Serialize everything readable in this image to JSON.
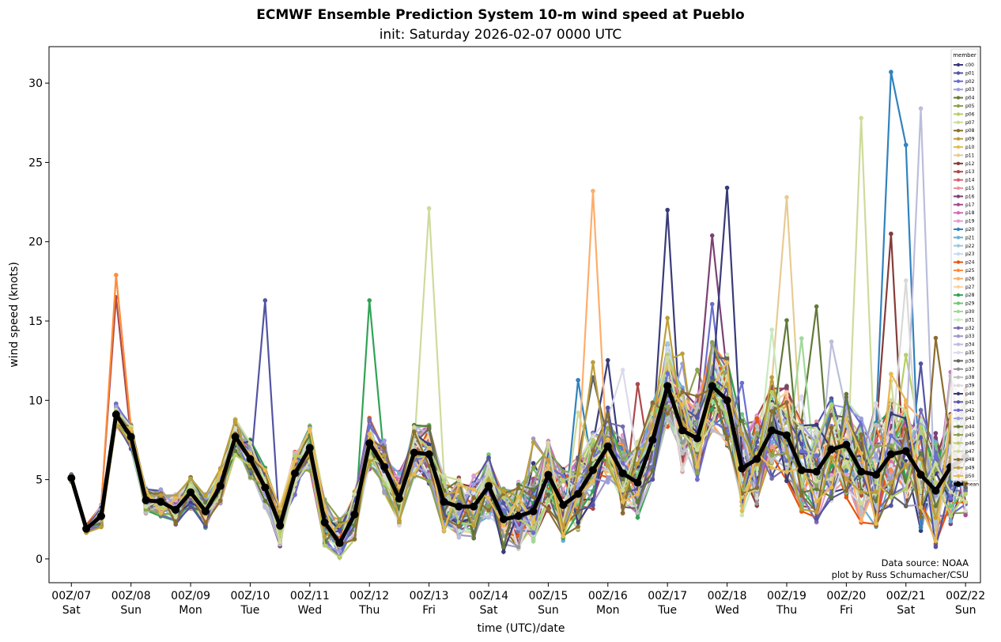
{
  "chart_data": {
    "type": "line",
    "title": "ECMWF Ensemble Prediction System 10-m wind speed at Pueblo",
    "subtitle": "init: Saturday 2026-02-07 0000 UTC",
    "xlabel": "time (UTC)/date",
    "ylabel": "wind speed (knots)",
    "x_unit": "forecast hour",
    "x_step_hours": 6,
    "xlim_hours": [
      -9,
      366
    ],
    "ylim": [
      -1.5,
      32.3
    ],
    "yticks": [
      0,
      5,
      10,
      15,
      20,
      25,
      30
    ],
    "xticks": [
      {
        "hour": 0,
        "line1": "00Z/07",
        "line2": "Sat"
      },
      {
        "hour": 24,
        "line1": "00Z/08",
        "line2": "Sun"
      },
      {
        "hour": 48,
        "line1": "00Z/09",
        "line2": "Mon"
      },
      {
        "hour": 72,
        "line1": "00Z/10",
        "line2": "Tue"
      },
      {
        "hour": 96,
        "line1": "00Z/11",
        "line2": "Wed"
      },
      {
        "hour": 120,
        "line1": "00Z/12",
        "line2": "Thu"
      },
      {
        "hour": 144,
        "line1": "00Z/13",
        "line2": "Fri"
      },
      {
        "hour": 168,
        "line1": "00Z/14",
        "line2": "Sat"
      },
      {
        "hour": 192,
        "line1": "00Z/15",
        "line2": "Sun"
      },
      {
        "hour": 216,
        "line1": "00Z/16",
        "line2": "Mon"
      },
      {
        "hour": 240,
        "line1": "00Z/17",
        "line2": "Tue"
      },
      {
        "hour": 264,
        "line1": "00Z/18",
        "line2": "Wed"
      },
      {
        "hour": 288,
        "line1": "00Z/19",
        "line2": "Thu"
      },
      {
        "hour": 312,
        "line1": "00Z/20",
        "line2": "Fri"
      },
      {
        "hour": 336,
        "line1": "00Z/21",
        "line2": "Sat"
      },
      {
        "hour": 360,
        "line1": "00Z/22",
        "line2": "Sun"
      }
    ],
    "grid": false,
    "legend": {
      "title": "member",
      "placement": "upper-right"
    },
    "mean": {
      "name": "mean",
      "color": "#000000",
      "values": [
        5.1,
        1.9,
        2.7,
        9.1,
        7.7,
        3.7,
        3.6,
        3.1,
        4.2,
        3.0,
        4.6,
        7.7,
        6.3,
        4.5,
        2.1,
        5.4,
        7.0,
        2.3,
        1.0,
        2.8,
        7.3,
        5.8,
        3.8,
        6.7,
        6.6,
        3.6,
        3.3,
        3.3,
        4.6,
        2.5,
        2.7,
        3.0,
        5.3,
        3.4,
        4.1,
        5.6,
        7.1,
        5.4,
        4.8,
        7.5,
        10.9,
        8.1,
        7.6,
        10.9,
        10.0,
        5.7,
        6.3,
        8.1,
        7.8,
        5.6,
        5.5,
        6.9,
        7.2,
        5.5,
        5.3,
        6.6,
        6.8,
        5.3,
        4.3,
        5.8,
        6.4
      ]
    },
    "members": [
      {
        "name": "c00",
        "color": "#393b79"
      },
      {
        "name": "p01",
        "color": "#5254a3"
      },
      {
        "name": "p02",
        "color": "#6b6ecf"
      },
      {
        "name": "p03",
        "color": "#9c9ede"
      },
      {
        "name": "p04",
        "color": "#637939"
      },
      {
        "name": "p05",
        "color": "#8ca252"
      },
      {
        "name": "p06",
        "color": "#b5cf6b"
      },
      {
        "name": "p07",
        "color": "#cedb9c"
      },
      {
        "name": "p08",
        "color": "#8c6d31"
      },
      {
        "name": "p09",
        "color": "#bd9e39"
      },
      {
        "name": "p10",
        "color": "#e7ba52"
      },
      {
        "name": "p11",
        "color": "#e7cb94"
      },
      {
        "name": "p12",
        "color": "#843c39"
      },
      {
        "name": "p13",
        "color": "#ad494a"
      },
      {
        "name": "p14",
        "color": "#d6616b"
      },
      {
        "name": "p15",
        "color": "#e7969c"
      },
      {
        "name": "p16",
        "color": "#7b4173"
      },
      {
        "name": "p17",
        "color": "#a55194"
      },
      {
        "name": "p18",
        "color": "#ce6dbd"
      },
      {
        "name": "p19",
        "color": "#de9ed6"
      },
      {
        "name": "p20",
        "color": "#3182bd"
      },
      {
        "name": "p21",
        "color": "#6baed6"
      },
      {
        "name": "p22",
        "color": "#9ecae1"
      },
      {
        "name": "p23",
        "color": "#c6dbef"
      },
      {
        "name": "p24",
        "color": "#e6550d"
      },
      {
        "name": "p25",
        "color": "#fd8d3c"
      },
      {
        "name": "p26",
        "color": "#fdae6b"
      },
      {
        "name": "p27",
        "color": "#fdd0a2"
      },
      {
        "name": "p28",
        "color": "#31a354"
      },
      {
        "name": "p29",
        "color": "#74c476"
      },
      {
        "name": "p30",
        "color": "#a1d99b"
      },
      {
        "name": "p31",
        "color": "#c7e9c0"
      },
      {
        "name": "p32",
        "color": "#756bb1"
      },
      {
        "name": "p33",
        "color": "#9e9ac8"
      },
      {
        "name": "p34",
        "color": "#bcbddc"
      },
      {
        "name": "p35",
        "color": "#dadaeb"
      },
      {
        "name": "p36",
        "color": "#636363"
      },
      {
        "name": "p37",
        "color": "#969696"
      },
      {
        "name": "p38",
        "color": "#bdbdbd"
      },
      {
        "name": "p39",
        "color": "#d9d9d9"
      },
      {
        "name": "p40",
        "color": "#393b79"
      },
      {
        "name": "p41",
        "color": "#5254a3"
      },
      {
        "name": "p42",
        "color": "#6b6ecf"
      },
      {
        "name": "p43",
        "color": "#9c9ede"
      },
      {
        "name": "p44",
        "color": "#637939"
      },
      {
        "name": "p45",
        "color": "#8ca252"
      },
      {
        "name": "p46",
        "color": "#b5cf6b"
      },
      {
        "name": "p47",
        "color": "#cedb9c"
      },
      {
        "name": "p48",
        "color": "#8c6d31"
      },
      {
        "name": "p49",
        "color": "#bd9e39"
      },
      {
        "name": "p50",
        "color": "#e7ba52"
      }
    ],
    "member_peaks_observed": [
      {
        "member": "p25",
        "hour": 18,
        "value": 17.9
      },
      {
        "member": "p13",
        "hour": 18,
        "value": 16.5
      },
      {
        "member": "p41",
        "hour": 78,
        "value": 16.3
      },
      {
        "member": "p28",
        "hour": 120,
        "value": 16.3
      },
      {
        "member": "p07",
        "hour": 144,
        "value": 22.1
      },
      {
        "member": "p26",
        "hour": 210,
        "value": 23.2
      },
      {
        "member": "c00",
        "hour": 240,
        "value": 22.0
      },
      {
        "member": "p40",
        "hour": 264,
        "value": 23.4
      },
      {
        "member": "p11",
        "hour": 288,
        "value": 22.8
      },
      {
        "member": "p07",
        "hour": 318,
        "value": 27.8
      },
      {
        "member": "p20",
        "hour": 330,
        "value": 30.7
      },
      {
        "member": "p20",
        "hour": 336,
        "value": 26.1
      },
      {
        "member": "p34",
        "hour": 342,
        "value": 28.4
      },
      {
        "member": "p12",
        "hour": 330,
        "value": 20.5
      }
    ],
    "annotations": [
      "Data source: NOAA",
      "plot by Russ Schumacher/CSU"
    ]
  }
}
